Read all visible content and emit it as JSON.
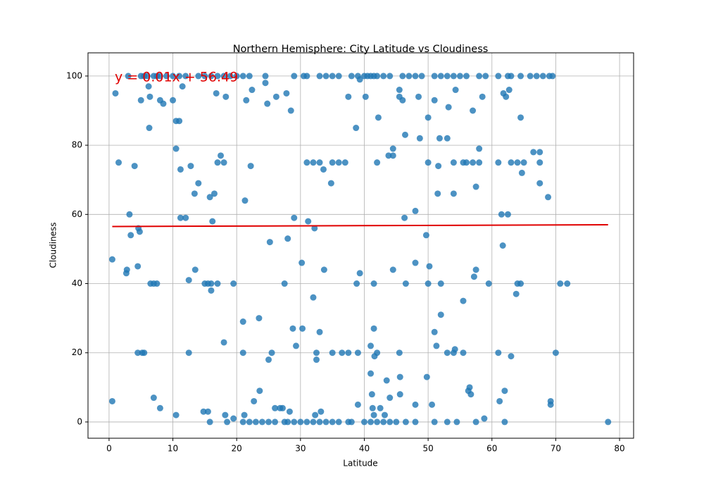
{
  "chart_data": {
    "type": "scatter",
    "title": "Northern Hemisphere: City Latitude vs Cloudiness",
    "x_label": "Latitude",
    "y_label": "Cloudiness",
    "xlim": [
      -3.3,
      82.2
    ],
    "ylim": [
      -4.7,
      106.7
    ],
    "xticks": [
      0,
      10,
      20,
      30,
      40,
      50,
      60,
      70,
      80
    ],
    "yticks": [
      0,
      20,
      40,
      60,
      80,
      100
    ],
    "grid": true,
    "series": [
      {
        "color": "#1f77b4",
        "x": [
          3,
          5,
          5.5,
          6,
          7,
          7.5,
          8,
          9,
          10,
          11,
          12,
          14,
          15,
          16,
          17,
          18,
          19,
          20,
          21,
          22,
          24.5,
          29,
          30.5,
          31,
          33,
          34,
          35,
          36,
          38,
          39,
          40,
          40.5,
          41,
          41.5,
          42,
          43,
          44,
          46,
          47,
          48,
          49,
          51,
          52,
          53,
          54,
          55,
          56,
          58,
          59,
          61,
          62.5,
          63,
          64.5,
          66,
          67,
          68,
          69,
          69.5,
          21,
          22,
          23,
          24,
          25,
          26,
          27.5,
          28,
          29,
          30,
          31,
          32,
          33,
          34,
          35,
          36,
          37.5,
          38,
          40,
          41,
          42,
          43,
          44,
          45,
          46.5,
          48,
          51,
          53,
          54.5,
          57.5,
          62,
          78.2,
          15.8,
          18.5,
          1.5,
          17,
          18,
          31,
          32,
          33,
          35,
          36,
          37,
          42,
          50,
          54,
          55.5,
          56,
          57,
          58,
          61,
          63,
          64,
          65,
          67.5,
          6.5,
          7,
          7.5,
          15,
          15.5,
          16,
          17,
          19.5,
          27.5,
          41.5,
          46.5,
          50,
          52,
          59.5,
          64,
          64.5,
          70.7,
          71.8,
          4.5,
          5.2,
          5.5,
          12.5,
          21,
          25.5,
          32.5,
          35,
          36.5,
          37.5,
          39,
          42,
          45.5,
          53,
          54,
          55.5,
          61,
          70,
          0.5,
          0.5,
          1,
          2.8,
          2.7,
          3.2,
          3.4,
          4,
          4.5,
          4.6,
          4.8,
          5,
          6.3,
          6.4,
          6.2,
          7,
          8,
          8,
          8.5,
          10,
          10.5,
          10.5,
          11,
          11.2,
          11.5,
          11.2,
          12,
          12.5,
          12.8,
          13.4,
          13.5,
          14,
          14.8,
          15.5,
          15.8,
          16,
          16.2,
          16.5,
          16.8,
          17.5,
          18,
          18.2,
          18.3,
          19.5,
          10.5,
          21,
          21.2,
          21.3,
          21.5,
          22.2,
          22.4,
          22.7,
          23.5,
          23.6,
          24.5,
          24.8,
          25,
          25.2,
          26,
          26.2,
          26.8,
          27.2,
          27.8,
          28,
          28.3,
          28.5,
          28.8,
          29,
          29.3,
          30.2,
          30.3,
          31.2,
          32,
          32.2,
          32.3,
          32.5,
          33,
          33.2,
          33.6,
          33.7,
          34.8,
          37.5,
          38.7,
          38.8,
          39,
          39.3,
          39.3,
          40.2,
          41,
          41,
          41.2,
          41.3,
          41.5,
          41.5,
          41.6,
          42.2,
          42.5,
          43.2,
          43.5,
          43.8,
          44,
          44.5,
          44.5,
          44.5,
          45.5,
          45.5,
          45.6,
          45.6,
          46,
          46.3,
          46.4,
          48,
          48,
          48,
          48.5,
          48.7,
          49.7,
          49.8,
          50,
          50.2,
          50.6,
          51,
          51,
          51.3,
          51.5,
          51.6,
          51.8,
          52,
          53,
          53.2,
          54,
          54.3,
          54.2,
          55.5,
          56.3,
          56.5,
          56.7,
          57,
          57.2,
          57.5,
          57.5,
          58,
          58.5,
          58.8,
          61.2,
          61.5,
          61.7,
          61.8,
          62,
          62.2,
          62.5,
          62.7,
          63,
          63.8,
          64.5,
          64.7,
          67.5,
          67.5,
          66.5,
          68.8,
          69.2,
          69.2
        ],
        "values": [
          100,
          100,
          100,
          100,
          100,
          100,
          100,
          100,
          100,
          100,
          100,
          100,
          100,
          100,
          100,
          100,
          100,
          100,
          100,
          100,
          100,
          100,
          100,
          100,
          100,
          100,
          100,
          100,
          100,
          100,
          100,
          100,
          100,
          100,
          100,
          100,
          100,
          100,
          100,
          100,
          100,
          100,
          100,
          100,
          100,
          100,
          100,
          100,
          100,
          100,
          100,
          100,
          100,
          100,
          100,
          100,
          100,
          100,
          0,
          0,
          0,
          0,
          0,
          0,
          0,
          0,
          0,
          0,
          0,
          0,
          0,
          0,
          0,
          0,
          0,
          0,
          0,
          0,
          0,
          0,
          0,
          0,
          0,
          0,
          0,
          0,
          0,
          0,
          0,
          0,
          0,
          0,
          75,
          75,
          75,
          75,
          75,
          75,
          75,
          75,
          75,
          75,
          75,
          75,
          75,
          75,
          75,
          75,
          75,
          75,
          75,
          75,
          75,
          40,
          40,
          40,
          40,
          40,
          40,
          40,
          40,
          40,
          40,
          40,
          40,
          40,
          40,
          40,
          40,
          40,
          40,
          20,
          20,
          20,
          20,
          20,
          20,
          20,
          20,
          20,
          20,
          20,
          20,
          20,
          20,
          20,
          20,
          20,
          20,
          47,
          6,
          95,
          44,
          43,
          60,
          54,
          74,
          45,
          56,
          55,
          93,
          85,
          94,
          97,
          7,
          4,
          93,
          92,
          93,
          79,
          87,
          87,
          73,
          97,
          59,
          59,
          41,
          74,
          66,
          44,
          69,
          3,
          3,
          65,
          38,
          58,
          66,
          95,
          77,
          23,
          2,
          94,
          1,
          2,
          29,
          2,
          64,
          93,
          74,
          96,
          6,
          30,
          9,
          98,
          92,
          18,
          52,
          4,
          94,
          4,
          4,
          95,
          53,
          3,
          90,
          27,
          59,
          22,
          46,
          27,
          58,
          36,
          56,
          2,
          18,
          26,
          3,
          73,
          44,
          69,
          94,
          85,
          40,
          5,
          99,
          43,
          94,
          22,
          14,
          8,
          4,
          27,
          2,
          19,
          88,
          4,
          2,
          12,
          77,
          7,
          44,
          79,
          77,
          96,
          94,
          8,
          13,
          93,
          59,
          83,
          46,
          61,
          5,
          94,
          82,
          54,
          13,
          88,
          45,
          5,
          93,
          26,
          22,
          66,
          74,
          82,
          31,
          82,
          91,
          66,
          96,
          21,
          35,
          9,
          10,
          8,
          90,
          42,
          44,
          68,
          79,
          94,
          1,
          6,
          60,
          51,
          95,
          9,
          94,
          60,
          96,
          19,
          37,
          88,
          72,
          69,
          78,
          78,
          65,
          6,
          5
        ]
      }
    ],
    "regression": {
      "color": "#e00000",
      "x": [
        0.5,
        78.2
      ],
      "y": [
        56.5,
        57.0
      ],
      "label": "y = 0.01x + 56.49"
    }
  }
}
